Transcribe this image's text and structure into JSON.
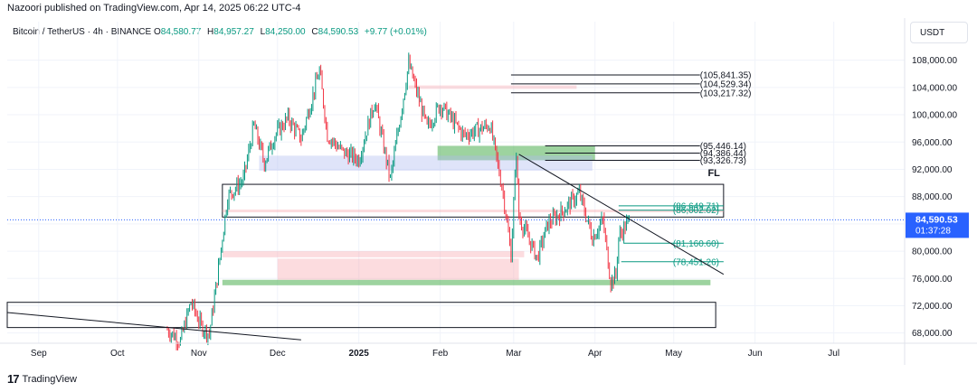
{
  "publisher": "Nazoori published on TradingView.com, Apr 14, 2025 06:22 UTC-4",
  "legend": {
    "symbol": "Bitcoin / TetherUS · 4h · BINANCE",
    "o_label": "O",
    "o_value": "84,580.77",
    "h_label": "H",
    "h_value": "84,957.27",
    "l_label": "L",
    "l_value": "84,250.00",
    "c_label": "C",
    "c_value": "84,590.53",
    "change": "+9.77 (+0.01%)"
  },
  "currency": "USDT",
  "footer": {
    "brand": "TradingView",
    "logo_icon": "tradingview-logo-icon"
  },
  "colors": {
    "up": "#089981",
    "down": "#f23645",
    "price_line": "#2962ff",
    "zone_green": "#4caf50",
    "zone_red": "#f7a8b0",
    "zone_blue": "#aebcf0"
  },
  "chart_data": {
    "type": "line",
    "ylim": [
      66500,
      111000
    ],
    "x_ticks": [
      "Sep",
      "Oct",
      "Nov",
      "Dec",
      "2025",
      "Feb",
      "Mar",
      "Apr",
      "May",
      "Jun",
      "Jul"
    ],
    "y_ticks": [
      {
        "value": 68000,
        "label": "68,000.00"
      },
      {
        "value": 72000,
        "label": "72,000.00"
      },
      {
        "value": 76000,
        "label": "76,000.00"
      },
      {
        "value": 80000,
        "label": "80,000.00"
      },
      {
        "value": 84000,
        "label": "84,000.00"
      },
      {
        "value": 88000,
        "label": "88,000.00"
      },
      {
        "value": 92000,
        "label": "92,000.00"
      },
      {
        "value": 96000,
        "label": "96,000.00"
      },
      {
        "value": 100000,
        "label": "100,000.00"
      },
      {
        "value": 104000,
        "label": "104,000.00"
      },
      {
        "value": 108000,
        "label": "108,000.00"
      }
    ],
    "current_price": {
      "value": 84590.53,
      "label": "84,590.53",
      "countdown": "01:37:28"
    },
    "series": [
      {
        "x": [
          "2024-10-20",
          "2024-10-25",
          "2024-10-29",
          "2024-11-02",
          "2024-11-05",
          "2024-11-08",
          "2024-11-12",
          "2024-11-18",
          "2024-11-22",
          "2024-11-26",
          "2024-11-30",
          "2024-12-05",
          "2024-12-10",
          "2024-12-17",
          "2024-12-20",
          "2024-12-26",
          "2025-01-01",
          "2025-01-07",
          "2025-01-13",
          "2025-01-20",
          "2025-01-27",
          "2025-02-01",
          "2025-02-10",
          "2025-02-20",
          "2025-02-25",
          "2025-02-28",
          "2025-03-02",
          "2025-03-03",
          "2025-03-10",
          "2025-03-14",
          "2025-03-20",
          "2025-03-26",
          "2025-03-31",
          "2025-04-04",
          "2025-04-07",
          "2025-04-09",
          "2025-04-10",
          "2025-04-14"
        ],
        "values": [
          68500,
          66800,
          72500,
          69000,
          67800,
          76000,
          88000,
          90500,
          98500,
          93000,
          97000,
          99500,
          96500,
          106500,
          97000,
          94500,
          93500,
          102000,
          90500,
          107500,
          98000,
          101500,
          97000,
          98500,
          88500,
          79500,
          94500,
          85000,
          79000,
          84000,
          86000,
          88500,
          82000,
          84500,
          75500,
          76500,
          82000,
          84590
        ]
      }
    ],
    "zones": [
      {
        "kind": "rect-outline",
        "from": "2024-11-10",
        "to": "2025-05-20",
        "low": 85000,
        "high": 89800
      },
      {
        "kind": "rect-outline",
        "from": "2024-08-20",
        "to": "2025-05-17",
        "low": 68800,
        "high": 72500
      },
      {
        "kind": "rect-fill",
        "color": "green",
        "from": "2025-01-31",
        "to": "2025-04-01",
        "low": 93326.73,
        "high": 95446.14
      },
      {
        "kind": "rect-fill",
        "color": "blue",
        "from": "2024-11-24",
        "to": "2025-03-31",
        "low": 91800,
        "high": 94000
      },
      {
        "kind": "rect-fill",
        "color": "green",
        "from": "2024-11-10",
        "to": "2025-05-15",
        "low": 75000,
        "high": 75800
      },
      {
        "kind": "rect-fill",
        "color": "red",
        "from": "2024-11-10",
        "to": "2025-03-05",
        "low": 79100,
        "high": 80000
      },
      {
        "kind": "rect-fill",
        "color": "red",
        "from": "2024-12-01",
        "to": "2025-03-03",
        "low": 75800,
        "high": 78900
      },
      {
        "kind": "rect-fill",
        "color": "red",
        "from": "2025-01-20",
        "to": "2025-03-25",
        "low": 103800,
        "high": 104300
      },
      {
        "kind": "rect-fill",
        "color": "red",
        "from": "2024-11-10",
        "to": "2025-05-20",
        "low": 85700,
        "high": 86100
      }
    ],
    "levels": [
      {
        "value": 105841.35,
        "label": "(105,841.35)",
        "color": "black",
        "from": "2025-02-28"
      },
      {
        "value": 104529.34,
        "label": "(104,529.34)",
        "color": "black",
        "from": "2025-02-28"
      },
      {
        "value": 103217.32,
        "label": "(103,217.32)",
        "color": "black",
        "from": "2025-02-28"
      },
      {
        "value": 95446.14,
        "label": "(95,446.14)",
        "color": "black",
        "from": "2025-03-13"
      },
      {
        "value": 94386.44,
        "label": "(94,386.44)",
        "color": "black",
        "from": "2025-03-13"
      },
      {
        "value": 93326.73,
        "label": "(93,326.73)",
        "color": "black",
        "from": "2025-03-13"
      },
      {
        "value": 86649.71,
        "label": "(86,649.71)",
        "color": "green",
        "from": "2025-04-10"
      },
      {
        "value": 86002.02,
        "label": "(86,002.02)",
        "color": "green",
        "from": "2025-04-10"
      },
      {
        "value": 81160.6,
        "label": "(81,160.60)",
        "color": "green",
        "from": "2025-04-12"
      },
      {
        "value": 78451.26,
        "label": "(78,451.26)",
        "color": "green",
        "from": "2025-04-11"
      }
    ],
    "trendlines": [
      {
        "from": {
          "x": "2025-03-03",
          "y": 94200
        },
        "to": {
          "x": "2025-05-20",
          "y": 76600
        }
      },
      {
        "from": {
          "x": "2024-08-20",
          "y": 71000
        },
        "to": {
          "x": "2024-12-10",
          "y": 67000
        }
      }
    ],
    "annotations": [
      {
        "text": "FL",
        "x": "2025-05-14",
        "y": 91000
      }
    ]
  }
}
